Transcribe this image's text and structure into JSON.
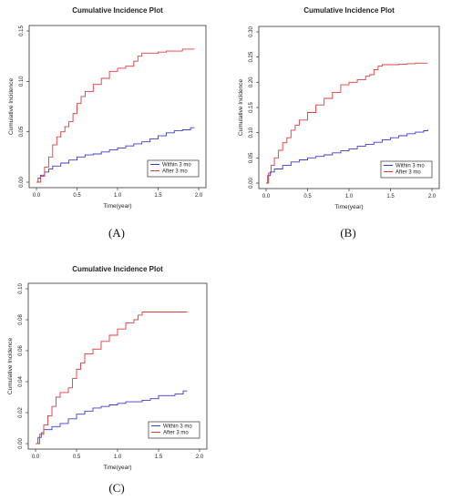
{
  "chart_data": [
    {
      "type": "line",
      "panel_label": "(A)",
      "title": "Cumulative Incidence Plot",
      "xlabel": "Time(year)",
      "ylabel": "Cumulative Incidence",
      "xlim": [
        0,
        2.0
      ],
      "ylim": [
        0,
        0.15
      ],
      "xticks": [
        "0.0",
        "0.5",
        "1.0",
        "1.5",
        "2.0"
      ],
      "yticks": [
        "0.00",
        "0.05",
        "0.10",
        "0.15"
      ],
      "legend": "bottom-right",
      "series": [
        {
          "name": "Within 3 mo",
          "color": "#3b3bd1",
          "x": [
            0,
            0.02,
            0.05,
            0.1,
            0.15,
            0.2,
            0.3,
            0.4,
            0.5,
            0.6,
            0.7,
            0.8,
            0.9,
            1.0,
            1.1,
            1.2,
            1.3,
            1.4,
            1.5,
            1.6,
            1.7,
            1.8,
            1.9,
            1.95
          ],
          "y": [
            0,
            0.004,
            0.007,
            0.01,
            0.013,
            0.016,
            0.019,
            0.022,
            0.025,
            0.027,
            0.028,
            0.03,
            0.032,
            0.034,
            0.036,
            0.038,
            0.04,
            0.043,
            0.046,
            0.049,
            0.051,
            0.052,
            0.054,
            0.054
          ]
        },
        {
          "name": "After 3 mo",
          "color": "#e03c3c",
          "x": [
            0,
            0.05,
            0.1,
            0.15,
            0.2,
            0.25,
            0.3,
            0.35,
            0.4,
            0.45,
            0.5,
            0.55,
            0.6,
            0.7,
            0.8,
            0.9,
            1.0,
            1.1,
            1.2,
            1.25,
            1.3,
            1.4,
            1.5,
            1.6,
            1.7,
            1.8,
            1.95
          ],
          "y": [
            0,
            0.006,
            0.015,
            0.025,
            0.037,
            0.045,
            0.05,
            0.055,
            0.06,
            0.068,
            0.078,
            0.085,
            0.09,
            0.097,
            0.103,
            0.11,
            0.113,
            0.115,
            0.12,
            0.125,
            0.128,
            0.128,
            0.129,
            0.13,
            0.13,
            0.132,
            0.132
          ]
        }
      ]
    },
    {
      "type": "line",
      "panel_label": "(B)",
      "title": "Cumulative Incidence Plot",
      "xlabel": "Time(year)",
      "ylabel": "Cumulative Incidence",
      "xlim": [
        0,
        2.0
      ],
      "ylim": [
        0,
        0.3
      ],
      "xticks": [
        "0.0",
        "0.5",
        "1.0",
        "1.5",
        "2.0"
      ],
      "yticks": [
        "0.00",
        "0.05",
        "0.10",
        "0.15",
        "0.20",
        "0.25",
        "0.30"
      ],
      "legend": "bottom-right",
      "series": [
        {
          "name": "Within 3 mo",
          "color": "#3b3bd1",
          "x": [
            0,
            0.02,
            0.05,
            0.1,
            0.2,
            0.3,
            0.4,
            0.5,
            0.6,
            0.7,
            0.8,
            0.9,
            1.0,
            1.1,
            1.2,
            1.3,
            1.4,
            1.5,
            1.6,
            1.7,
            1.8,
            1.9,
            1.95
          ],
          "y": [
            0,
            0.015,
            0.022,
            0.028,
            0.035,
            0.042,
            0.046,
            0.05,
            0.053,
            0.056,
            0.06,
            0.064,
            0.068,
            0.073,
            0.077,
            0.081,
            0.086,
            0.09,
            0.094,
            0.098,
            0.101,
            0.104,
            0.106
          ]
        },
        {
          "name": "After 3 mo",
          "color": "#e03c3c",
          "x": [
            0,
            0.03,
            0.06,
            0.1,
            0.15,
            0.2,
            0.25,
            0.3,
            0.35,
            0.4,
            0.5,
            0.6,
            0.7,
            0.8,
            0.9,
            1.0,
            1.1,
            1.2,
            1.25,
            1.3,
            1.35,
            1.4,
            1.5,
            1.6,
            1.7,
            1.8,
            1.95
          ],
          "y": [
            0,
            0.02,
            0.035,
            0.05,
            0.065,
            0.08,
            0.09,
            0.105,
            0.115,
            0.125,
            0.14,
            0.155,
            0.168,
            0.18,
            0.195,
            0.2,
            0.205,
            0.212,
            0.215,
            0.225,
            0.232,
            0.235,
            0.235,
            0.236,
            0.237,
            0.238,
            0.238
          ]
        }
      ]
    },
    {
      "type": "line",
      "panel_label": "(C)",
      "title": "Cumulative Incidence Plot",
      "xlabel": "Time(year)",
      "ylabel": "Cumulative Incidence",
      "xlim": [
        0,
        2.0
      ],
      "ylim": [
        0,
        0.1
      ],
      "xticks": [
        "0.0",
        "0.5",
        "1.0",
        "1.5",
        "2.0"
      ],
      "yticks": [
        "0.00",
        "0.02",
        "0.04",
        "0.06",
        "0.08",
        "0.10"
      ],
      "legend": "bottom-right",
      "series": [
        {
          "name": "Within 3 mo",
          "color": "#3b3bd1",
          "x": [
            0,
            0.03,
            0.07,
            0.1,
            0.2,
            0.3,
            0.4,
            0.5,
            0.6,
            0.7,
            0.8,
            0.9,
            1.0,
            1.1,
            1.2,
            1.3,
            1.4,
            1.5,
            1.6,
            1.7,
            1.8,
            1.85
          ],
          "y": [
            0,
            0.004,
            0.007,
            0.009,
            0.011,
            0.013,
            0.016,
            0.019,
            0.021,
            0.023,
            0.024,
            0.025,
            0.026,
            0.027,
            0.027,
            0.028,
            0.029,
            0.031,
            0.031,
            0.032,
            0.034,
            0.034
          ]
        },
        {
          "name": "After 3 mo",
          "color": "#e03c3c",
          "x": [
            0,
            0.05,
            0.1,
            0.15,
            0.2,
            0.25,
            0.3,
            0.35,
            0.4,
            0.45,
            0.5,
            0.55,
            0.6,
            0.7,
            0.8,
            0.9,
            1.0,
            1.1,
            1.2,
            1.25,
            1.3,
            1.5,
            1.7,
            1.85
          ],
          "y": [
            0,
            0.006,
            0.012,
            0.018,
            0.024,
            0.03,
            0.033,
            0.033,
            0.036,
            0.042,
            0.048,
            0.052,
            0.058,
            0.061,
            0.066,
            0.07,
            0.074,
            0.078,
            0.08,
            0.083,
            0.085,
            0.085,
            0.085,
            0.085
          ]
        }
      ]
    }
  ]
}
